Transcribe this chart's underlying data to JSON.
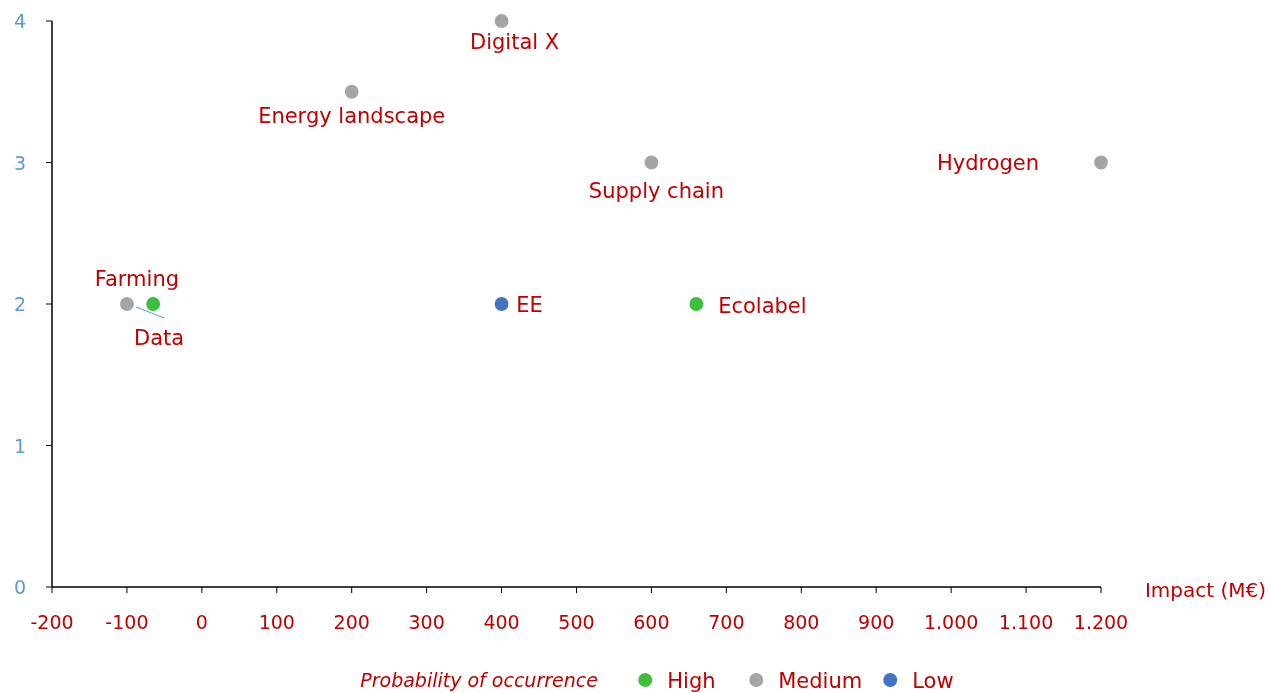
{
  "chart_data": {
    "type": "scatter",
    "xlabel": "Impact (M€)",
    "legend_title": "Probability of occurrence",
    "legend": "bottom",
    "grid": false,
    "marker": "circle",
    "xlim": [
      -200,
      1200
    ],
    "xticks": [
      -200,
      -100,
      0,
      100,
      200,
      300,
      400,
      500,
      600,
      700,
      800,
      900,
      {
        "value": 1000,
        "label": "1.000"
      },
      {
        "value": 1100,
        "label": "1.100"
      },
      {
        "value": 1200,
        "label": "1.200"
      }
    ],
    "ylim": [
      0,
      4
    ],
    "yticks": [
      0,
      1,
      2,
      3,
      4
    ],
    "series": [
      {
        "name": "High",
        "color": "#3cbf3c",
        "x": [
          -65,
          660
        ],
        "values": [
          2,
          2
        ]
      },
      {
        "name": "Medium",
        "color": "#a5a5a5",
        "x": [
          400,
          200,
          600,
          1200,
          -100
        ],
        "values": [
          4,
          3.5,
          3,
          3,
          2
        ]
      },
      {
        "name": "Low",
        "color": "#4472c4",
        "x": [
          400
        ],
        "values": [
          2
        ]
      }
    ],
    "annotations": [
      {
        "text": "Digital X",
        "x": 400,
        "y": 4
      },
      {
        "text": "Energy landscape",
        "x": 200,
        "y": 3.5
      },
      {
        "text": "Supply chain",
        "x": 600,
        "y": 3
      },
      {
        "text": "Hydrogen",
        "x": 1200,
        "y": 3
      },
      {
        "text": "Farming",
        "x": -100,
        "y": 2
      },
      {
        "text": "Data",
        "x": -65,
        "y": 2
      },
      {
        "text": "EE",
        "x": 400,
        "y": 2
      },
      {
        "text": "Ecolabel",
        "x": 660,
        "y": 2
      }
    ]
  }
}
